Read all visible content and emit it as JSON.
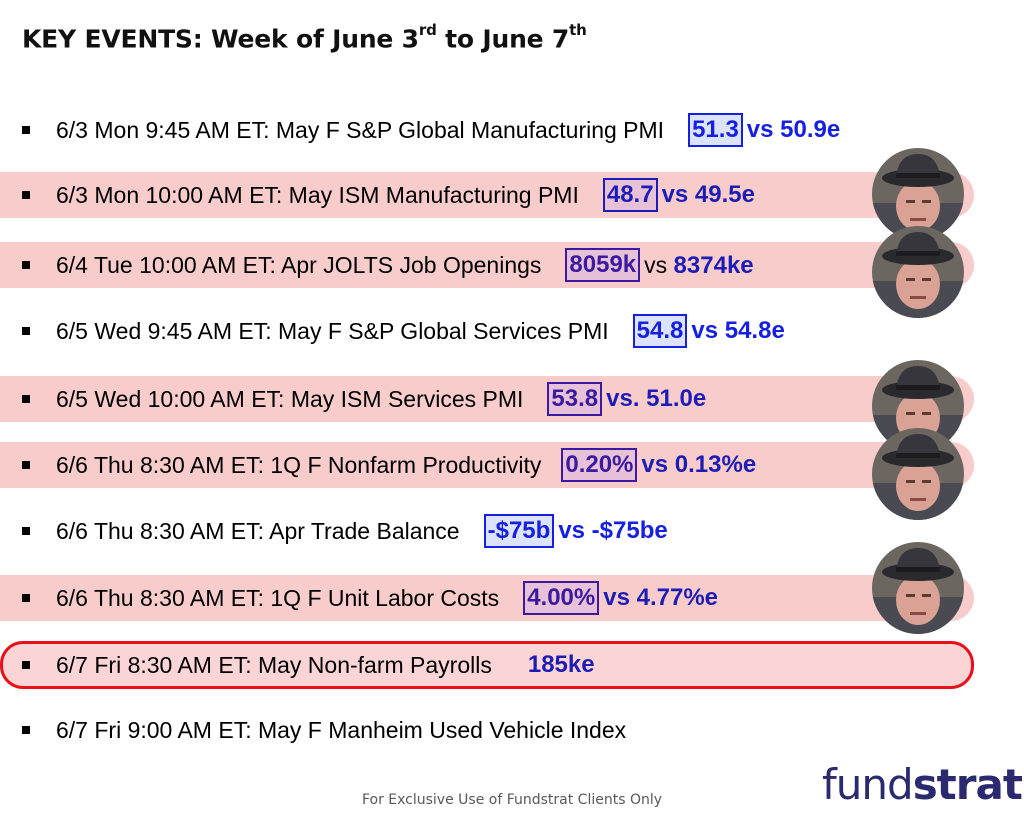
{
  "title": {
    "text": "KEY EVENTS: Week of June 3",
    "sup1": "rd",
    "mid": " to June 7",
    "sup2": "th"
  },
  "events": [
    {
      "label": "6/3 Mon 9:45 AM ET: May F S&P Global Manufacturing PMI",
      "actual": "51.3",
      "expected": "vs 50.9e"
    },
    {
      "label": "6/3 Mon 10:00 AM ET: May ISM Manufacturing PMI",
      "actual": "48.7",
      "expected": "vs 49.5e"
    },
    {
      "label": "6/4 Tue 10:00 AM ET: Apr JOLTS Job Openings",
      "actual": "8059k",
      "expected_prefix": "vs ",
      "expected": "8374ke"
    },
    {
      "label": "6/5 Wed 9:45 AM ET: May F S&P Global Services PMI",
      "actual": "54.8",
      "expected": "vs 54.8e"
    },
    {
      "label": "6/5 Wed 10:00 AM ET: May ISM Services PMI",
      "actual": "53.8",
      "expected": "vs. 51.0e"
    },
    {
      "label": "6/6 Thu 8:30 AM ET: 1Q F Nonfarm Productivity",
      "actual": "0.20%",
      "expected": "vs 0.13%e"
    },
    {
      "label": "6/6 Thu 8:30 AM ET: Apr Trade Balance",
      "actual": "-$75b",
      "expected": "vs -$75be"
    },
    {
      "label": "6/6 Thu 8:30 AM ET: 1Q F Unit Labor Costs",
      "actual": "4.00%",
      "expected": "vs 4.77%e"
    },
    {
      "label": "6/7 Fri 8:30 AM ET: May Non-farm Payrolls",
      "expected": "185ke"
    },
    {
      "label": "6/7 Fri 9:00 AM ET: May F Manheim Used Vehicle Index"
    }
  ],
  "footer": "For Exclusive Use of Fundstrat Clients Only",
  "logo": {
    "light": "fund",
    "bold": "strat"
  },
  "colors": {
    "highlight_band": "#f9cccc",
    "outline_red": "#e8111a",
    "value_blue": "#1520e0",
    "logo": "#2b2a6f"
  }
}
